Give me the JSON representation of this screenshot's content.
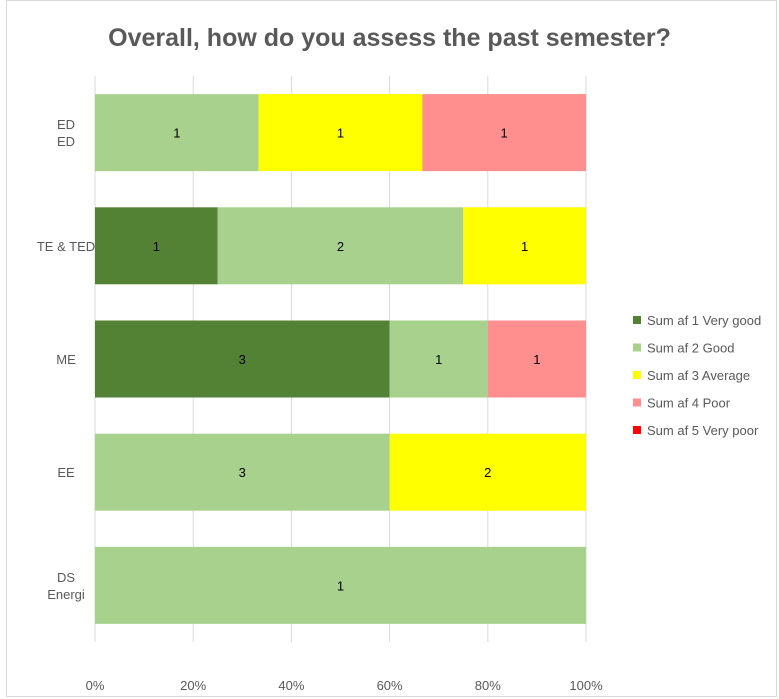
{
  "chart_data": {
    "type": "bar",
    "orientation": "horizontal",
    "stacked": "percent",
    "title": "Overall, how do you assess the past semester?",
    "categories": [
      [
        "ED",
        "ED"
      ],
      [
        "TE & TED"
      ],
      [
        "ME"
      ],
      [
        "EE"
      ],
      [
        "DS",
        "Energi"
      ]
    ],
    "x_ticks": [
      "0%",
      "20%",
      "40%",
      "60%",
      "80%",
      "100%"
    ],
    "xlim": [
      0,
      1
    ],
    "grid": "vertical",
    "legend": "right",
    "series": [
      {
        "name": "Sum af 1 Very good",
        "color": "#548235",
        "values": [
          0,
          1,
          3,
          0,
          0
        ]
      },
      {
        "name": "Sum af 2 Good",
        "color": "#a9d18e",
        "values": [
          1,
          2,
          1,
          3,
          1
        ]
      },
      {
        "name": "Sum af 3 Average",
        "color": "#ffff00",
        "values": [
          1,
          1,
          0,
          2,
          0
        ]
      },
      {
        "name": "Sum af 4 Poor",
        "color": "#ff8f8f",
        "values": [
          1,
          0,
          1,
          0,
          0
        ]
      },
      {
        "name": "Sum af 5 Very poor",
        "color": "#ff0000",
        "values": [
          0,
          0,
          0,
          0,
          0
        ]
      }
    ]
  }
}
